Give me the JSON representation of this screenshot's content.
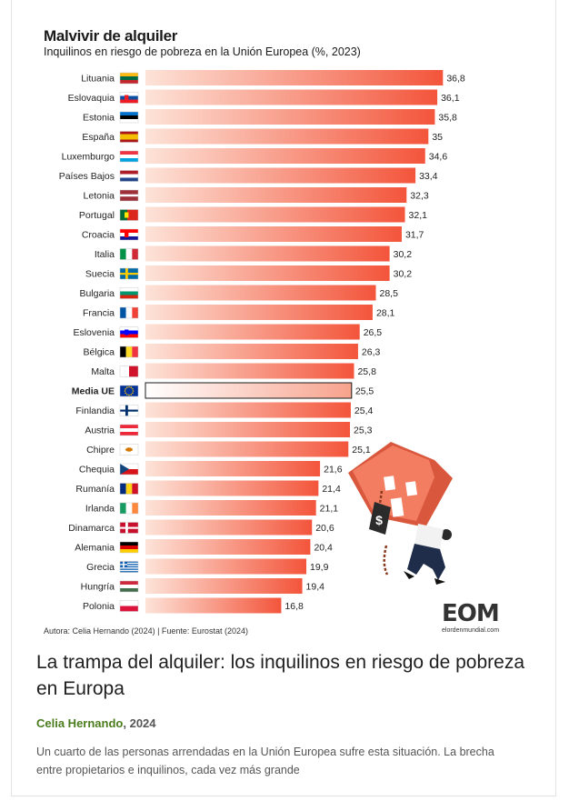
{
  "chart_data": {
    "type": "bar",
    "orientation": "horizontal",
    "title": "Malvivir de alquiler",
    "subtitle": "Inquilinos en riesgo de pobreza en la Unión Europea (%, 2023)",
    "categories": [
      "Lituania",
      "Eslovaquia",
      "Estonia",
      "España",
      "Luxemburgo",
      "Países Bajos",
      "Letonia",
      "Portugal",
      "Croacia",
      "Italia",
      "Suecia",
      "Bulgaria",
      "Francia",
      "Eslovenia",
      "Bélgica",
      "Malta",
      "Media UE",
      "Finlandia",
      "Austria",
      "Chipre",
      "Chequia",
      "Rumanía",
      "Irlanda",
      "Dinamarca",
      "Alemania",
      "Grecia",
      "Hungría",
      "Polonia"
    ],
    "values": [
      36.8,
      36.1,
      35.8,
      35,
      34.6,
      33.4,
      32.3,
      32.1,
      31.7,
      30.2,
      30.2,
      28.5,
      28.1,
      26.5,
      26.3,
      25.8,
      25.5,
      25.4,
      25.3,
      25.1,
      21.6,
      21.4,
      21.1,
      20.6,
      20.4,
      19.9,
      19.4,
      16.8
    ],
    "value_labels": [
      "36,8",
      "36,1",
      "35,8",
      "35",
      "34,6",
      "33,4",
      "32,3",
      "32,1",
      "31,7",
      "30,2",
      "30,2",
      "28,5",
      "28,1",
      "26,5",
      "26,3",
      "25,8",
      "25,5",
      "25,4",
      "25,3",
      "25,1",
      "21,6",
      "21,4",
      "21,1",
      "20,6",
      "20,4",
      "19,9",
      "19,4",
      "16,8"
    ],
    "highlight_category": "Media UE",
    "xlim": [
      0,
      38
    ],
    "grid": false,
    "colors": {
      "bar_start": "#fde3d8",
      "bar_end": "#f3553b",
      "highlight_start": "#ffffff",
      "highlight_end": "#f7a28c"
    }
  },
  "flags": {
    "Lituania": {
      "type": "h3",
      "colors": [
        "#FDB913",
        "#006A44",
        "#C1272D"
      ]
    },
    "Eslovaquia": {
      "type": "h3",
      "colors": [
        "#FFFFFF",
        "#0B4EA2",
        "#EE1C25"
      ],
      "emblem": "#EE1C25"
    },
    "Estonia": {
      "type": "h3",
      "colors": [
        "#0072CE",
        "#000000",
        "#FFFFFF"
      ]
    },
    "España": {
      "type": "h3r",
      "colors": [
        "#AA151B",
        "#F1BF00",
        "#AA151B"
      ]
    },
    "Luxemburgo": {
      "type": "h3",
      "colors": [
        "#EF3340",
        "#FFFFFF",
        "#00A3E0"
      ]
    },
    "Países Bajos": {
      "type": "h3",
      "colors": [
        "#AE1C28",
        "#FFFFFF",
        "#21468B"
      ]
    },
    "Letonia": {
      "type": "h3r",
      "colors": [
        "#9E3039",
        "#FFFFFF",
        "#9E3039"
      ],
      "ratio": [
        2,
        1,
        2
      ]
    },
    "Portugal": {
      "type": "v2",
      "colors": [
        "#046A38",
        "#DA291C"
      ],
      "ratio": [
        2,
        3
      ],
      "emblem": "#FFE900"
    },
    "Croacia": {
      "type": "h3",
      "colors": [
        "#FF0000",
        "#FFFFFF",
        "#171796"
      ],
      "emblem": "#FF0000"
    },
    "Italia": {
      "type": "v3",
      "colors": [
        "#009246",
        "#FFFFFF",
        "#CE2B37"
      ]
    },
    "Suecia": {
      "type": "cross",
      "colors": [
        "#006AA7",
        "#FECC00"
      ]
    },
    "Bulgaria": {
      "type": "h3",
      "colors": [
        "#FFFFFF",
        "#00966E",
        "#D62612"
      ]
    },
    "Francia": {
      "type": "v3",
      "colors": [
        "#0055A4",
        "#FFFFFF",
        "#EF4135"
      ]
    },
    "Eslovenia": {
      "type": "h3",
      "colors": [
        "#FFFFFF",
        "#0000FF",
        "#FF0000"
      ],
      "emblem": "#0000FF"
    },
    "Bélgica": {
      "type": "v3",
      "colors": [
        "#000000",
        "#FDDA24",
        "#EF3340"
      ]
    },
    "Malta": {
      "type": "v2",
      "colors": [
        "#FFFFFF",
        "#CF142B"
      ],
      "ratio": [
        1,
        1
      ]
    },
    "Media UE": {
      "type": "eu",
      "colors": [
        "#003399",
        "#FFCC00"
      ]
    },
    "Finlandia": {
      "type": "cross",
      "colors": [
        "#FFFFFF",
        "#002F6C"
      ]
    },
    "Austria": {
      "type": "h3",
      "colors": [
        "#ED2939",
        "#FFFFFF",
        "#ED2939"
      ]
    },
    "Chipre": {
      "type": "plain",
      "colors": [
        "#FFFFFF",
        "#D57800"
      ]
    },
    "Chequia": {
      "type": "czech",
      "colors": [
        "#FFFFFF",
        "#D7141A",
        "#11457E"
      ]
    },
    "Rumanía": {
      "type": "v3",
      "colors": [
        "#002B7F",
        "#FCD116",
        "#CE1126"
      ]
    },
    "Irlanda": {
      "type": "v3",
      "colors": [
        "#169B62",
        "#FFFFFF",
        "#FF883E"
      ]
    },
    "Dinamarca": {
      "type": "cross",
      "colors": [
        "#C8102E",
        "#FFFFFF"
      ]
    },
    "Alemania": {
      "type": "h3",
      "colors": [
        "#000000",
        "#DD0000",
        "#FFCE00"
      ]
    },
    "Grecia": {
      "type": "greece",
      "colors": [
        "#0D5EAF",
        "#FFFFFF"
      ]
    },
    "Hungría": {
      "type": "h3",
      "colors": [
        "#CD2A3E",
        "#FFFFFF",
        "#436F4D"
      ]
    },
    "Polonia": {
      "type": "h2",
      "colors": [
        "#FFFFFF",
        "#DC143C"
      ]
    }
  },
  "illustration": {
    "price_tag_symbol": "$",
    "colors": {
      "house": "#f37d61",
      "house_dark": "#d9583d",
      "chain": "#8a3a1e",
      "tag": "#2b2b2b",
      "shirt": "#f2f2f2",
      "pants": "#1f2d4a"
    }
  },
  "credit": "Autora: Celia Hernando (2024) | Fuente: Eurostat (2024)",
  "logo": {
    "main": "EOM",
    "sub": "elordenmundial.com"
  },
  "article": {
    "title": "La trampa del alquiler: los inquilinos en riesgo de pobreza en Europa",
    "author": "Celia Hernando",
    "year_text": ", 2024",
    "summary": "Un cuarto de las personas arrendadas en la Unión Europea sufre esta situación. La brecha entre propietarios e inquilinos, cada vez más grande"
  }
}
